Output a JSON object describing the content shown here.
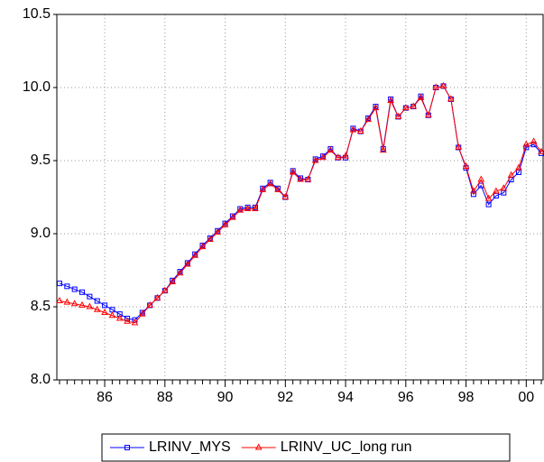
{
  "chart_data": {
    "type": "line",
    "categories": [
      null,
      null,
      null,
      null,
      null,
      null,
      "86",
      null,
      null,
      null,
      null,
      null,
      null,
      null,
      "88",
      null,
      null,
      null,
      null,
      null,
      null,
      null,
      "90",
      null,
      null,
      null,
      null,
      null,
      null,
      null,
      "92",
      null,
      null,
      null,
      null,
      null,
      null,
      null,
      "94",
      null,
      null,
      null,
      null,
      null,
      null,
      null,
      "96",
      null,
      null,
      null,
      null,
      null,
      null,
      null,
      "98",
      null,
      null,
      null,
      null,
      null,
      null,
      null,
      "00",
      null,
      null
    ],
    "series": [
      {
        "name": "LRINV_MYS",
        "color": "#0000ff",
        "marker": "square",
        "values": [
          8.66,
          8.64,
          8.62,
          8.6,
          8.57,
          8.54,
          8.51,
          8.48,
          8.45,
          8.42,
          8.41,
          8.46,
          8.51,
          8.56,
          8.61,
          8.68,
          8.74,
          8.8,
          8.86,
          8.92,
          8.97,
          9.02,
          9.07,
          9.12,
          9.17,
          9.18,
          9.18,
          9.31,
          9.35,
          9.31,
          9.25,
          9.43,
          9.38,
          9.37,
          9.51,
          9.53,
          9.58,
          9.52,
          9.52,
          9.72,
          9.7,
          9.79,
          9.87,
          9.58,
          9.92,
          9.8,
          9.86,
          9.87,
          9.94,
          9.81,
          10.0,
          10.01,
          9.92,
          9.59,
          9.45,
          9.27,
          9.33,
          9.2,
          9.26,
          9.28,
          9.37,
          9.42,
          9.59,
          9.61,
          9.55
        ]
      },
      {
        "name": "LRINV_UC_long run",
        "color": "#ff0000",
        "marker": "triangle",
        "values": [
          8.54,
          8.53,
          8.52,
          8.51,
          8.5,
          8.48,
          8.46,
          8.44,
          8.42,
          8.4,
          8.39,
          8.45,
          8.51,
          8.56,
          8.61,
          8.67,
          8.73,
          8.79,
          8.85,
          8.91,
          8.96,
          9.01,
          9.06,
          9.11,
          9.16,
          9.17,
          9.17,
          9.3,
          9.34,
          9.3,
          9.25,
          9.42,
          9.37,
          9.37,
          9.5,
          9.52,
          9.57,
          9.52,
          9.53,
          9.71,
          9.7,
          9.78,
          9.86,
          9.57,
          9.91,
          9.8,
          9.86,
          9.87,
          9.93,
          9.81,
          10.0,
          10.01,
          9.92,
          9.59,
          9.46,
          9.29,
          9.37,
          9.24,
          9.29,
          9.31,
          9.4,
          9.45,
          9.61,
          9.63,
          9.56
        ]
      }
    ],
    "ylim": [
      8.0,
      10.5
    ],
    "yticks": [
      {
        "value": 8.0,
        "label": "8.0"
      },
      {
        "value": 8.5,
        "label": "8.5"
      },
      {
        "value": 9.0,
        "label": "9.0"
      },
      {
        "value": 9.5,
        "label": "9.5"
      },
      {
        "value": 10.0,
        "label": "10.0"
      },
      {
        "value": 10.5,
        "label": "10.5"
      }
    ],
    "grid": true,
    "legend": "bottom"
  }
}
